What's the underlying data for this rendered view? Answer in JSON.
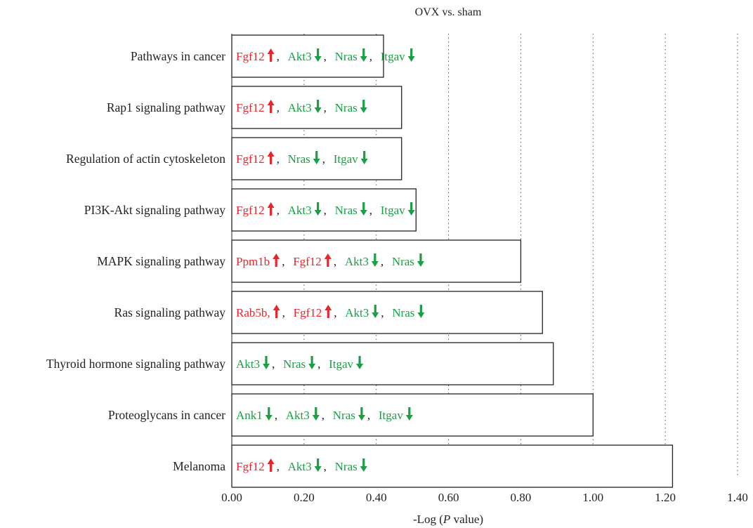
{
  "chart_data": {
    "type": "bar",
    "orientation": "horizontal",
    "title": "OVX vs. sham",
    "xlabel": "-Log (P value)",
    "xlabel_parts": [
      "-Log (",
      "P",
      " value)"
    ],
    "xlim": [
      0,
      1.4
    ],
    "xticks": [
      "0.00",
      "0.20",
      "0.40",
      "0.60",
      "0.80",
      "1.00",
      "1.20",
      "1.40"
    ],
    "grid": "dotted vertical",
    "categories": [
      "Pathways in cancer",
      "Rap1 signaling pathway",
      "Regulation of actin cytoskeleton",
      "PI3K-Akt signaling pathway",
      "MAPK signaling pathway",
      "Ras signaling pathway",
      "Thyroid hormone signaling pathway",
      "Proteoglycans in cancer",
      "Melanoma"
    ],
    "values": [
      0.42,
      0.47,
      0.47,
      0.51,
      0.8,
      0.86,
      0.89,
      1.0,
      1.22
    ],
    "genes": [
      [
        {
          "name": "Fgf12",
          "dir": "up"
        },
        {
          "name": "Akt3",
          "dir": "down"
        },
        {
          "name": "Nras",
          "dir": "down"
        },
        {
          "name": "Itgav",
          "dir": "down"
        }
      ],
      [
        {
          "name": "Fgf12",
          "dir": "up"
        },
        {
          "name": "Akt3",
          "dir": "down"
        },
        {
          "name": "Nras",
          "dir": "down"
        }
      ],
      [
        {
          "name": "Fgf12",
          "dir": "up"
        },
        {
          "name": "Nras",
          "dir": "down"
        },
        {
          "name": "Itgav",
          "dir": "down"
        }
      ],
      [
        {
          "name": "Fgf12",
          "dir": "up"
        },
        {
          "name": "Akt3",
          "dir": "down"
        },
        {
          "name": "Nras",
          "dir": "down"
        },
        {
          "name": "Itgav",
          "dir": "down"
        }
      ],
      [
        {
          "name": "Ppm1b",
          "dir": "up"
        },
        {
          "name": "Fgf12",
          "dir": "up"
        },
        {
          "name": "Akt3",
          "dir": "down"
        },
        {
          "name": "Nras",
          "dir": "down"
        }
      ],
      [
        {
          "name": "Rab5b,",
          "dir": "up"
        },
        {
          "name": "Fgf12",
          "dir": "up"
        },
        {
          "name": "Akt3",
          "dir": "down"
        },
        {
          "name": "Nras",
          "dir": "down"
        }
      ],
      [
        {
          "name": "Akt3",
          "dir": "down"
        },
        {
          "name": "Nras",
          "dir": "down"
        },
        {
          "name": "Itgav",
          "dir": "down"
        }
      ],
      [
        {
          "name": "Ank1",
          "dir": "down"
        },
        {
          "name": "Akt3",
          "dir": "down"
        },
        {
          "name": "Nras",
          "dir": "down"
        },
        {
          "name": "Itgav",
          "dir": "down"
        }
      ],
      [
        {
          "name": "Fgf12",
          "dir": "up"
        },
        {
          "name": "Akt3",
          "dir": "down"
        },
        {
          "name": "Nras",
          "dir": "down"
        }
      ]
    ],
    "separator": ",",
    "colors": {
      "up": "#e8252b",
      "down": "#1a9e46",
      "bar_fill": "#ffffff",
      "bar_stroke": "#222222",
      "grid": "#555555"
    }
  }
}
